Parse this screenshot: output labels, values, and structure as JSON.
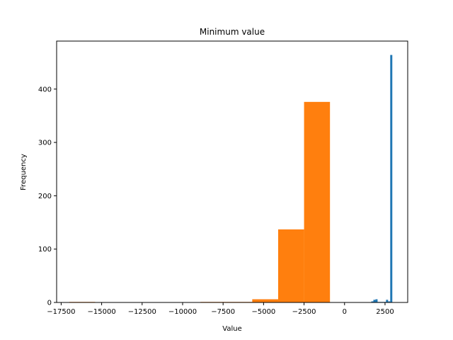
{
  "chart_data": {
    "type": "bar",
    "title": "Minimum value",
    "xlabel": "Value",
    "ylabel": "Frequency",
    "xlim": [
      -17780,
      3900
    ],
    "ylim": [
      0,
      490
    ],
    "xticks": [
      -17500,
      -15000,
      -12500,
      -10000,
      -7500,
      -5000,
      -2500,
      0,
      2500
    ],
    "xtick_labels": [
      "−17500",
      "−15000",
      "−12500",
      "−10000",
      "−7500",
      "−5000",
      "−2500",
      "0",
      "2500"
    ],
    "yticks": [
      0,
      100,
      200,
      300,
      400
    ],
    "ytick_labels": [
      "0",
      "100",
      "200",
      "300",
      "400"
    ],
    "grid": false,
    "series": [
      {
        "color": "#ff7f0e",
        "bins": [
          {
            "x0": -17000,
            "x1": -15400,
            "value": 1
          },
          {
            "x0": -8900,
            "x1": -7300,
            "value": 1
          },
          {
            "x0": -7300,
            "x1": -5700,
            "value": 1
          },
          {
            "x0": -5700,
            "x1": -4100,
            "value": 6
          },
          {
            "x0": -4100,
            "x1": -2500,
            "value": 137
          },
          {
            "x0": -2500,
            "x1": -900,
            "value": 376
          }
        ]
      },
      {
        "color": "#1f77b4",
        "bins": [
          {
            "x0": 1650,
            "x1": 1780,
            "value": 2
          },
          {
            "x0": 1780,
            "x1": 1910,
            "value": 5
          },
          {
            "x0": 1910,
            "x1": 2040,
            "value": 6
          },
          {
            "x0": 2040,
            "x1": 2170,
            "value": 1
          },
          {
            "x0": 2170,
            "x1": 2300,
            "value": 1
          },
          {
            "x0": 2300,
            "x1": 2430,
            "value": 1
          },
          {
            "x0": 2430,
            "x1": 2560,
            "value": 1
          },
          {
            "x0": 2560,
            "x1": 2690,
            "value": 5
          },
          {
            "x0": 2690,
            "x1": 2820,
            "value": 2
          },
          {
            "x0": 2820,
            "x1": 2950,
            "value": 464
          }
        ]
      }
    ]
  }
}
